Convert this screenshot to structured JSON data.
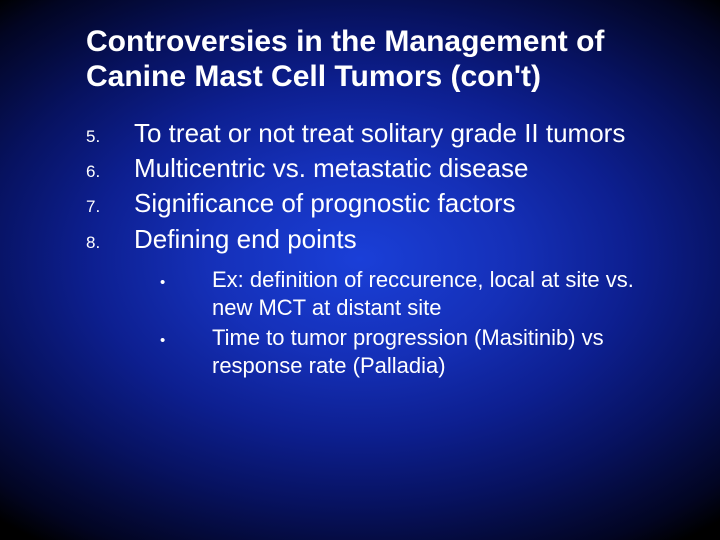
{
  "slide": {
    "background": {
      "type": "radial-gradient",
      "center_color": "#1a3fd8",
      "mid_color": "#0d1f90",
      "edge_color": "#000000"
    },
    "text_color": "#ffffff",
    "title": "Controversies in the Management of Canine Mast Cell Tumors (con't)",
    "title_fontsize": 30,
    "title_fontweight": 700,
    "numbered_items": [
      {
        "num": "5.",
        "text": "To treat or not treat solitary grade II tumors"
      },
      {
        "num": "6.",
        "text": "Multicentric vs. metastatic disease"
      },
      {
        "num": "7.",
        "text": "Significance of prognostic factors"
      },
      {
        "num": "8.",
        "text": "Defining end points"
      }
    ],
    "numbered_num_fontsize": 17,
    "numbered_text_fontsize": 26,
    "bullets": [
      {
        "marker": "•",
        "text": "Ex: definition of reccurence, local at site vs. new MCT at distant site"
      },
      {
        "marker": "•",
        "text": "Time to tumor progression (Masitinib) vs response rate (Palladia)"
      }
    ],
    "bullet_marker_fontsize": 15,
    "bullet_text_fontsize": 22,
    "font_family": "Verdana"
  }
}
